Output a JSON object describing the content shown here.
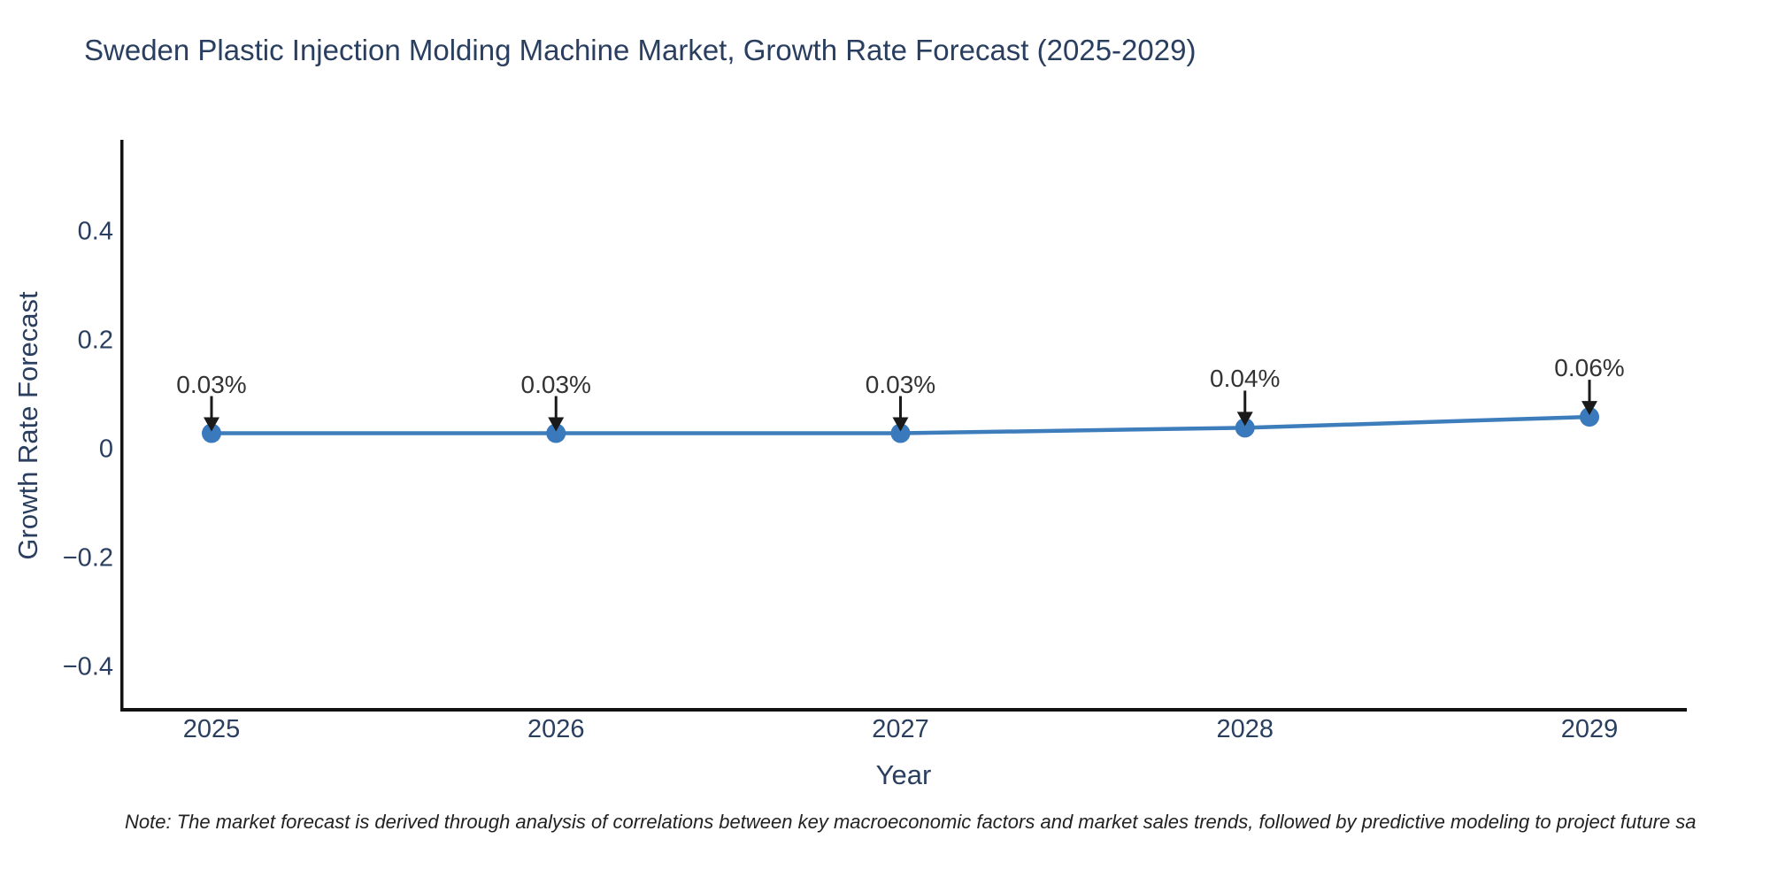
{
  "title": "Sweden Plastic Injection Molding Machine Market, Growth Rate Forecast (2025-2029)",
  "note": "Note: The market forecast is derived through analysis of correlations between key macroeconomic factors and market sales trends, followed by predictive modeling to project future sa",
  "chart_data": {
    "type": "line",
    "title": "Sweden Plastic Injection Molding Machine Market, Growth Rate Forecast (2025-2029)",
    "xlabel": "Year",
    "ylabel": "Growth Rate Forecast",
    "x": [
      2025,
      2026,
      2027,
      2028,
      2029
    ],
    "series": [
      {
        "name": "Growth Rate Forecast",
        "values": [
          0.03,
          0.03,
          0.03,
          0.04,
          0.06
        ]
      }
    ],
    "point_labels": [
      "0.03%",
      "0.03%",
      "0.03%",
      "0.04%",
      "0.06%"
    ],
    "xticks": [
      {
        "value": 2025,
        "label": "2025"
      },
      {
        "value": 2026,
        "label": "2026"
      },
      {
        "value": 2027,
        "label": "2027"
      },
      {
        "value": 2028,
        "label": "2028"
      },
      {
        "value": 2029,
        "label": "2029"
      }
    ],
    "yticks": [
      {
        "value": 0.4,
        "label": "0.4"
      },
      {
        "value": 0.2,
        "label": "0.2"
      },
      {
        "value": 0,
        "label": "0"
      },
      {
        "value": -0.2,
        "label": "−0.2"
      },
      {
        "value": -0.4,
        "label": "−0.4"
      }
    ],
    "ylim": [
      -0.48,
      0.565
    ],
    "grid": false,
    "legend_position": "none",
    "annotations_have_arrows": true
  },
  "colors": {
    "line": "#3d7dbb",
    "marker": "#3a79bc",
    "axis_line": "#111111",
    "arrow": "#1a1a1a",
    "title_text": "#2a3f5f",
    "axis_text": "#2a3f5f",
    "annotation_text": "#333333",
    "note_text": "#222222",
    "background": "#ffffff"
  }
}
